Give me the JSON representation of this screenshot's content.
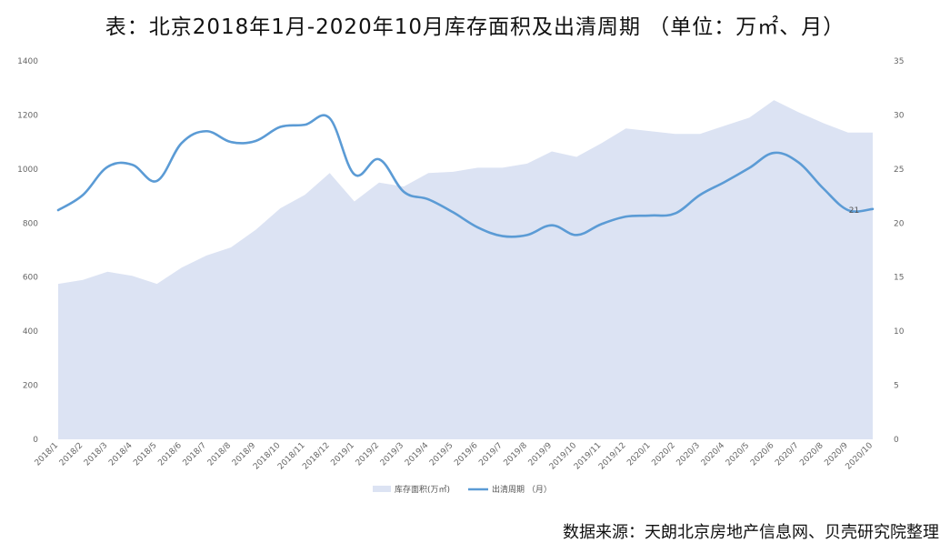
{
  "header": {
    "title": "表：北京2018年1月-2020年10月库存面积及出清周期 （单位：万㎡、月）"
  },
  "footer": {
    "source": "数据来源：天朗北京房地产信息网、贝壳研究院整理"
  },
  "colors": {
    "area_fill": "#dce3f3",
    "line": "#5b9bd5",
    "tick_text": "#666666"
  },
  "chart_data": {
    "type": "area+line",
    "categories": [
      "2018/1",
      "2018/2",
      "2018/3",
      "2018/4",
      "2018/5",
      "2018/6",
      "2018/7",
      "2018/8",
      "2018/9",
      "2018/10",
      "2018/11",
      "2018/12",
      "2019/1",
      "2019/2",
      "2019/3",
      "2019/4",
      "2019/5",
      "2019/6",
      "2019/7",
      "2019/8",
      "2019/9",
      "2019/10",
      "2019/11",
      "2019/12",
      "2020/1",
      "2020/2",
      "2020/3",
      "2020/4",
      "2020/5",
      "2020/6",
      "2020/7",
      "2020/8",
      "2020/9",
      "2020/10"
    ],
    "series": [
      {
        "name": "库存面积(万㎡)",
        "type": "area",
        "axis": "left",
        "values": [
          575,
          590,
          620,
          605,
          575,
          635,
          680,
          710,
          775,
          855,
          905,
          985,
          880,
          950,
          935,
          985,
          990,
          1005,
          1005,
          1020,
          1065,
          1045,
          1095,
          1150,
          1140,
          1130,
          1130,
          1160,
          1190,
          1255,
          1210,
          1170,
          1135,
          1135
        ]
      },
      {
        "name": "出清周期 （月）",
        "type": "line",
        "axis": "right",
        "values": [
          21.2,
          22.6,
          25.2,
          25.4,
          23.9,
          27.4,
          28.5,
          27.5,
          27.6,
          28.9,
          29.1,
          29.7,
          24.5,
          25.9,
          22.9,
          22.2,
          21.0,
          19.6,
          18.8,
          18.9,
          19.8,
          18.9,
          19.9,
          20.6,
          20.7,
          20.9,
          22.6,
          23.8,
          25.1,
          26.5,
          25.6,
          23.2,
          21.2,
          21.3
        ]
      }
    ],
    "y_left": {
      "min": 0,
      "max": 1400,
      "ticks": [
        "0",
        "200",
        "400",
        "600",
        "800",
        "1000",
        "1200",
        "1400"
      ]
    },
    "y_right": {
      "min": 0,
      "max": 35,
      "ticks": [
        "0",
        "5",
        "10",
        "15",
        "20",
        "25",
        "30",
        "35"
      ]
    },
    "data_labels": [
      {
        "series": 1,
        "index": 32,
        "text": "21"
      }
    ],
    "legend": {
      "position": "bottom",
      "entries": [
        "库存面积(万㎡)",
        "出清周期 （月）"
      ]
    },
    "grid": false
  }
}
